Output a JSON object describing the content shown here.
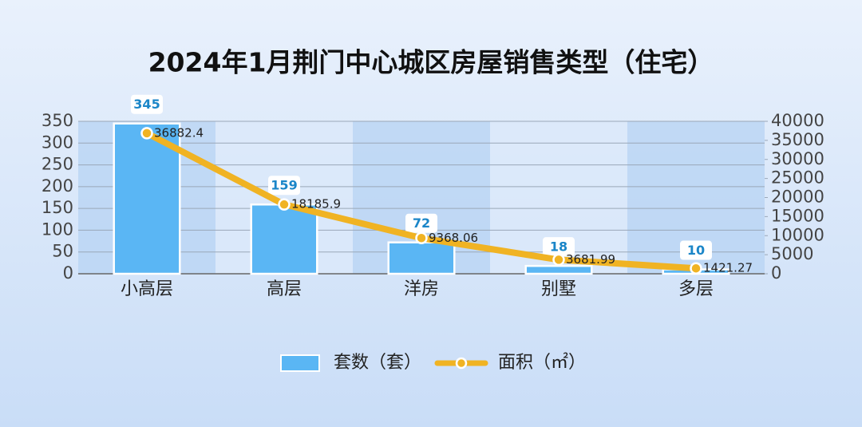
{
  "chart_data": {
    "type": "bar",
    "title": "2024年1月荆门中心城区房屋销售类型（住宅）",
    "categories": [
      "小高层",
      "高层",
      "洋房",
      "别墅",
      "多层"
    ],
    "series": [
      {
        "name": "套数（套）",
        "color": "#5ab6f4",
        "values": [
          345,
          159,
          72,
          18,
          10
        ]
      },
      {
        "name": "面积（㎡）",
        "color": "#f0b323",
        "type": "line",
        "axis": "y2",
        "values": [
          36882.4,
          18185.9,
          9368.06,
          3681.99,
          1421.27
        ]
      }
    ],
    "ylim": [
      0,
      350
    ],
    "yticks": [
      0,
      50,
      100,
      150,
      200,
      250,
      300,
      350
    ],
    "y2lim": [
      0,
      40000
    ],
    "y2ticks": [
      0,
      5000,
      10000,
      15000,
      20000,
      25000,
      30000,
      35000,
      40000
    ],
    "grid": true,
    "legend": "bottom"
  }
}
